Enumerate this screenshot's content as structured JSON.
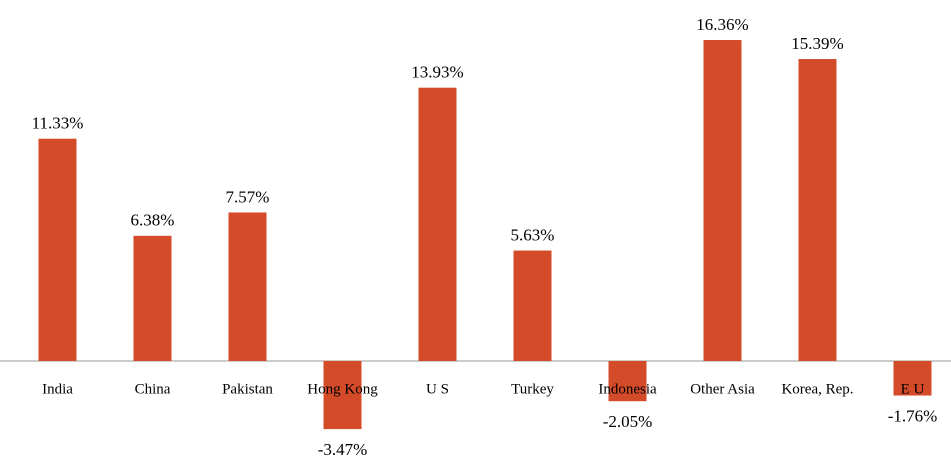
{
  "chart_data": {
    "type": "bar",
    "categories": [
      "India",
      "China",
      "Pakistan",
      "Hong Kong",
      "U S",
      "Turkey",
      "Indonesia",
      "Other Asia",
      "Korea, Rep.",
      "E U"
    ],
    "values": [
      11.33,
      6.38,
      7.57,
      -3.47,
      13.93,
      5.63,
      -2.05,
      16.36,
      15.39,
      -1.76
    ],
    "value_labels": [
      "11.33%",
      "6.38%",
      "7.57%",
      "-3.47%",
      "13.93%",
      "5.63%",
      "-2.05%",
      "16.36%",
      "15.39%",
      "-1.76%"
    ],
    "color": "#d44b2a",
    "ylim": [
      -5,
      18
    ]
  }
}
